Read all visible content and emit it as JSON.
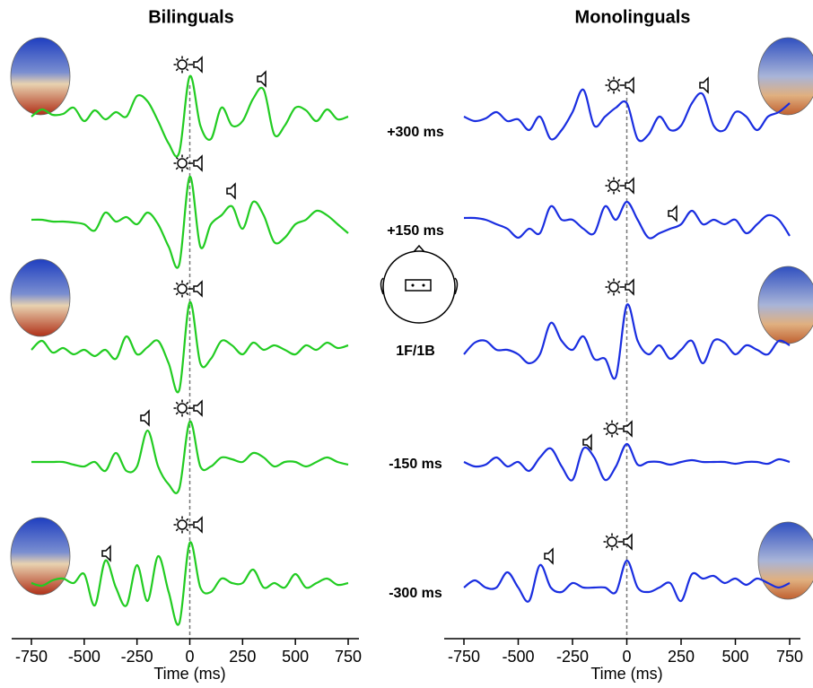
{
  "chart_data": [
    {
      "type": "line",
      "title": "Bilinguals",
      "xlabel": "Time (ms)",
      "color": "#22cc22",
      "xlim": [
        -750,
        750
      ],
      "xticks": [
        -750,
        -500,
        -250,
        0,
        250,
        500,
        750
      ],
      "vline": 0,
      "x": [
        -750,
        -700,
        -650,
        -600,
        -550,
        -500,
        -450,
        -400,
        -350,
        -300,
        -250,
        -200,
        -150,
        -100,
        -50,
        0,
        50,
        100,
        150,
        200,
        250,
        300,
        350,
        400,
        450,
        500,
        550,
        600,
        650,
        700,
        750
      ],
      "series": [
        {
          "values": [
            -5,
            3,
            -3,
            -2,
            5,
            -10,
            2,
            -8,
            0,
            -5,
            18,
            12,
            -10,
            -35,
            -45,
            40,
            -15,
            -30,
            5,
            -15,
            -10,
            15,
            25,
            -25,
            -15,
            5,
            2,
            -10,
            3,
            -8,
            -5
          ]
        },
        {
          "values": [
            0,
            0,
            -2,
            -2,
            -3,
            -5,
            -12,
            8,
            -2,
            3,
            -5,
            8,
            -5,
            -30,
            -50,
            48,
            -30,
            -5,
            5,
            15,
            -10,
            20,
            5,
            -25,
            -20,
            -5,
            0,
            10,
            5,
            -5,
            -15
          ]
        },
        {
          "values": [
            -5,
            5,
            -8,
            -3,
            -10,
            -5,
            -12,
            -5,
            -15,
            10,
            -10,
            -2,
            5,
            -20,
            -50,
            48,
            -20,
            -15,
            5,
            0,
            -10,
            3,
            -5,
            0,
            -5,
            -10,
            0,
            -5,
            3,
            -3,
            0
          ]
        },
        {
          "values": [
            0,
            0,
            0,
            0,
            -3,
            -5,
            0,
            -10,
            10,
            -10,
            -5,
            35,
            -5,
            -25,
            -30,
            45,
            -5,
            -5,
            5,
            3,
            0,
            10,
            5,
            -5,
            0,
            0,
            -5,
            0,
            5,
            0,
            -3
          ]
        },
        {
          "values": [
            0,
            -3,
            3,
            5,
            0,
            10,
            -25,
            25,
            -5,
            -25,
            20,
            -20,
            30,
            -10,
            -45,
            45,
            -5,
            -10,
            5,
            0,
            0,
            15,
            -5,
            0,
            -5,
            10,
            -5,
            0,
            5,
            -2,
            0
          ]
        }
      ]
    },
    {
      "type": "line",
      "title": "Monolinguals",
      "xlabel": "Time (ms)",
      "color": "#1a2ee0",
      "xlim": [
        -750,
        750
      ],
      "xticks": [
        -750,
        -500,
        -250,
        0,
        250,
        500,
        750
      ],
      "vline": 0,
      "x": [
        -750,
        -700,
        -650,
        -600,
        -550,
        -500,
        -450,
        -400,
        -350,
        -300,
        -250,
        -200,
        -150,
        -100,
        -50,
        0,
        50,
        100,
        150,
        200,
        250,
        300,
        350,
        400,
        450,
        500,
        550,
        600,
        650,
        700,
        750
      ],
      "series": [
        {
          "values": [
            0,
            -5,
            -2,
            5,
            -5,
            -3,
            -15,
            0,
            -25,
            -15,
            5,
            30,
            -10,
            0,
            10,
            15,
            -25,
            -20,
            0,
            -15,
            -10,
            15,
            25,
            -10,
            -15,
            5,
            0,
            -15,
            0,
            5,
            15
          ]
        },
        {
          "values": [
            2,
            2,
            0,
            -5,
            -10,
            -20,
            -10,
            -15,
            15,
            0,
            0,
            -10,
            -15,
            15,
            0,
            20,
            0,
            -20,
            -15,
            -10,
            -5,
            10,
            -5,
            0,
            -5,
            0,
            -15,
            -5,
            5,
            0,
            -18
          ]
        },
        {
          "values": [
            -10,
            3,
            5,
            -5,
            -5,
            -10,
            -20,
            -10,
            25,
            5,
            -5,
            10,
            -15,
            -15,
            -35,
            45,
            5,
            -10,
            0,
            -15,
            -5,
            5,
            -20,
            5,
            3,
            -10,
            0,
            -5,
            -10,
            5,
            0
          ]
        },
        {
          "values": [
            0,
            -5,
            -3,
            5,
            -5,
            0,
            -10,
            5,
            15,
            -5,
            -20,
            15,
            5,
            -20,
            -5,
            20,
            -3,
            0,
            0,
            -3,
            0,
            2,
            0,
            0,
            0,
            -2,
            0,
            0,
            -2,
            3,
            0
          ]
        },
        {
          "values": [
            -5,
            3,
            -5,
            -5,
            12,
            -5,
            -20,
            20,
            -5,
            -10,
            0,
            -5,
            -5,
            -5,
            -10,
            25,
            -5,
            -10,
            -5,
            0,
            -20,
            10,
            5,
            8,
            0,
            5,
            -2,
            5,
            0,
            -5,
            0
          ]
        }
      ]
    }
  ],
  "row_labels": [
    "+300 ms",
    "+150 ms",
    "1F/1B",
    "-150 ms",
    "-300 ms"
  ]
}
